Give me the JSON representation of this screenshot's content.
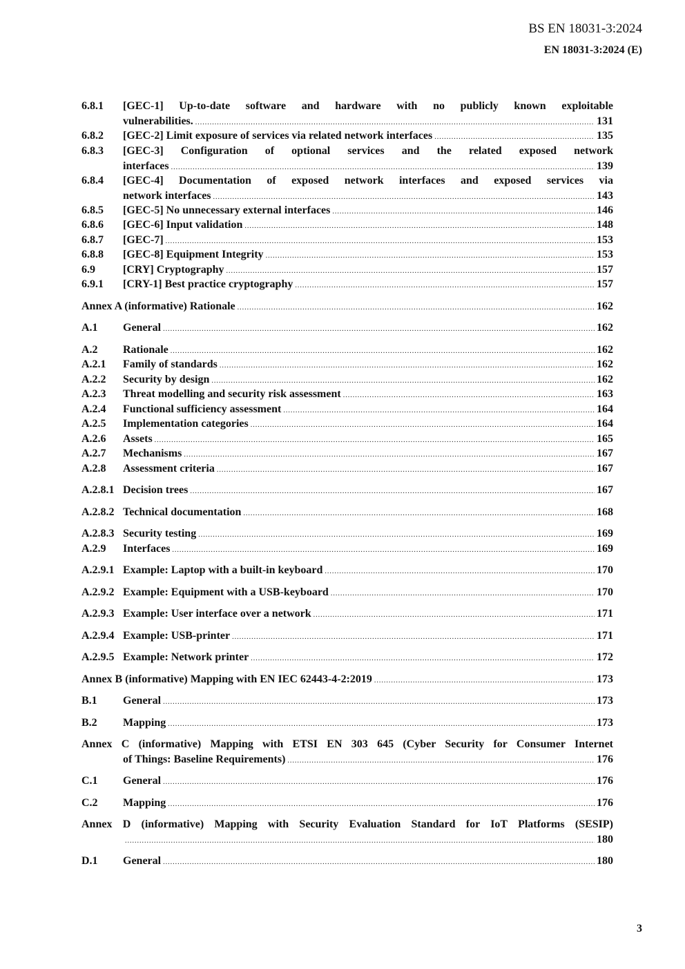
{
  "header": {
    "standard": "BS EN 18031-3:2024",
    "edition": "EN 18031-3:2024 (E)"
  },
  "toc": [
    {
      "num": "6.8.1",
      "line1": "[GEC-1] Up-to-date software and hardware with no publicly known exploitable",
      "title": "vulnerabilities.",
      "page": "131"
    },
    {
      "num": "6.8.2",
      "title": "[GEC-2] Limit exposure of services via related network interfaces",
      "page": "135"
    },
    {
      "num": "6.8.3",
      "line1": "[GEC-3] Configuration of optional services and the related exposed network",
      "title": "interfaces",
      "page": "139"
    },
    {
      "num": "6.8.4",
      "line1": "[GEC-4] Documentation of exposed network interfaces and exposed services via",
      "title": "network interfaces",
      "page": "143"
    },
    {
      "num": "6.8.5",
      "title": "[GEC-5] No unnecessary external interfaces",
      "page": "146"
    },
    {
      "num": "6.8.6",
      "title": "[GEC-6] Input validation",
      "page": "148"
    },
    {
      "num": "6.8.7",
      "title": "[GEC-7]",
      "page": "153"
    },
    {
      "num": "6.8.8",
      "title": "[GEC-8] Equipment Integrity",
      "page": "153"
    },
    {
      "num": "6.9",
      "title": "[CRY] Cryptography",
      "page": "157"
    },
    {
      "num": "6.9.1",
      "title": "[CRY-1] Best practice cryptography",
      "page": "157"
    },
    {
      "num": "",
      "title": "Annex A (informative)  Rationale",
      "page": "162"
    },
    {
      "num": "A.1",
      "title": "General",
      "page": "162"
    },
    {
      "num": "A.2",
      "title": "Rationale",
      "page": "162"
    },
    {
      "num": "A.2.1",
      "title": "Family of standards",
      "page": "162"
    },
    {
      "num": "A.2.2",
      "title": "Security by design",
      "page": "162"
    },
    {
      "num": "A.2.3",
      "title": "Threat modelling and security risk assessment",
      "page": "163"
    },
    {
      "num": "A.2.4",
      "title": "Functional sufficiency assessment",
      "page": "164"
    },
    {
      "num": "A.2.5",
      "title": "Implementation categories",
      "page": "164"
    },
    {
      "num": "A.2.6",
      "title": "Assets",
      "page": "165"
    },
    {
      "num": "A.2.7",
      "title": "Mechanisms",
      "page": "167"
    },
    {
      "num": "A.2.8",
      "title": "Assessment criteria",
      "page": "167"
    },
    {
      "num": "A.2.8.1",
      "title": "Decision trees",
      "page": "167"
    },
    {
      "num": "A.2.8.2",
      "title": "Technical documentation",
      "page": "168"
    },
    {
      "num": "A.2.8.3",
      "title": "Security testing",
      "page": "169"
    },
    {
      "num": "A.2.9",
      "title": "Interfaces",
      "page": "169"
    },
    {
      "num": "A.2.9.1",
      "title": "Example: Laptop with a built-in keyboard",
      "page": "170"
    },
    {
      "num": "A.2.9.2",
      "title": "Example: Equipment with a USB-keyboard",
      "page": "170"
    },
    {
      "num": "A.2.9.3",
      "title": "Example: User interface over a network",
      "page": "171"
    },
    {
      "num": "A.2.9.4",
      "title": "Example: USB-printer",
      "page": "171"
    },
    {
      "num": "A.2.9.5",
      "title": "Example: Network printer",
      "page": "172"
    },
    {
      "num": "",
      "title": "Annex B (informative)   Mapping with EN IEC 62443-4-2:2019",
      "page": "173"
    },
    {
      "num": "B.1",
      "title": "General",
      "page": "173"
    },
    {
      "num": "B.2",
      "title": "Mapping",
      "page": "173"
    },
    {
      "num": "",
      "line1": "Annex C (informative)  Mapping with ETSI EN 303 645 (Cyber Security for Consumer Internet",
      "title": "of Things: Baseline Requirements)",
      "page": "176"
    },
    {
      "num": "C.1",
      "title": "General",
      "page": "176"
    },
    {
      "num": "C.2",
      "title": "Mapping",
      "page": "176"
    },
    {
      "num": "",
      "line1": "Annex D (informative)  Mapping with Security Evaluation Standard for IoT Platforms (SESIP)",
      "title": "",
      "page": "180"
    },
    {
      "num": "D.1",
      "title": "General",
      "page": "180"
    }
  ],
  "footer": {
    "page_number": "3"
  }
}
